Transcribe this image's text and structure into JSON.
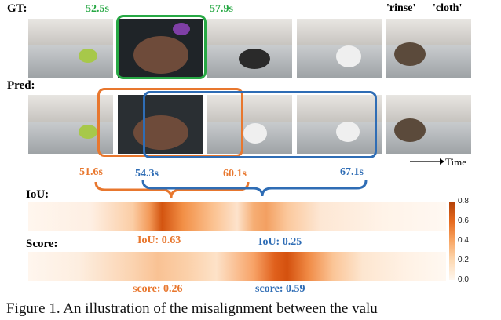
{
  "labels": {
    "gt": "GT:",
    "pred": "Pred:",
    "iou": "IoU:",
    "score": "Score:"
  },
  "gt_times": {
    "start": "52.5s",
    "end": "57.9s"
  },
  "caption_words": {
    "rinse": "'rinse'",
    "cloth": "'cloth'"
  },
  "pred_times": {
    "orange_start": "51.6s",
    "blue_start": "54.3s",
    "orange_end": "60.1s",
    "blue_end": "67.1s"
  },
  "time_axis_label": "Time",
  "iou_values": {
    "orange": "IoU: 0.63",
    "blue": "IoU: 0.25"
  },
  "score_values": {
    "orange": "score: 0.26",
    "blue": "score: 0.59"
  },
  "colorbar_ticks": [
    "0.8",
    "0.6",
    "0.4",
    "0.2",
    "0.0"
  ],
  "caption": "Figure 1. An illustration of the misalignment between the valu",
  "colors": {
    "green": "#27a844",
    "orange": "#e8772e",
    "blue": "#2f6db5"
  }
}
